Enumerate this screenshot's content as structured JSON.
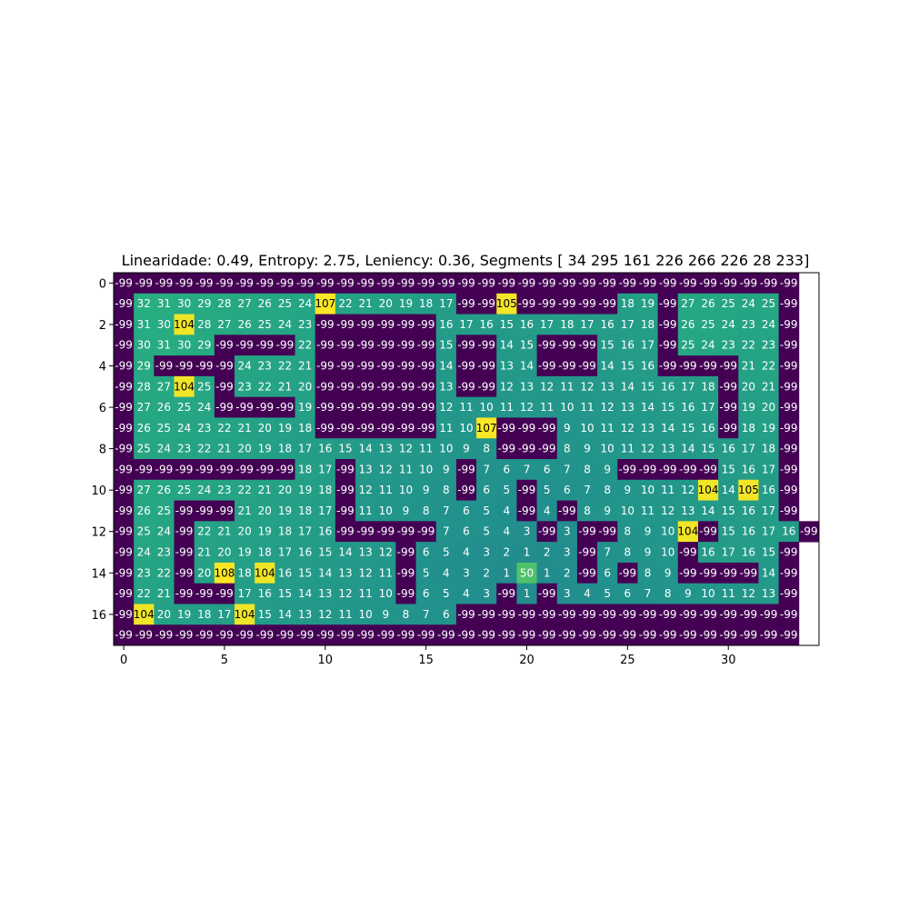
{
  "chart_data": {
    "type": "heatmap",
    "title": "Linearidade: 0.49, Entropy: 2.75, Leniency: 0.36, Segments [ 34 295 161 226 266 226  28 233]",
    "xlabel": "",
    "ylabel": "",
    "colormap": "viridis",
    "color_range": [
      -99,
      108
    ],
    "x_ticks": [
      0,
      5,
      10,
      15,
      20,
      25,
      30
    ],
    "y_ticks": [
      0,
      2,
      4,
      6,
      8,
      10,
      12,
      14,
      16
    ],
    "grid": false,
    "cell_text_colors": {
      "low": "#ffffff",
      "high": "#000000"
    },
    "cells": [
      [
        -99,
        -99,
        -99,
        -99,
        -99,
        -99,
        -99,
        -99,
        -99,
        -99,
        -99,
        -99,
        -99,
        -99,
        -99,
        -99,
        -99,
        -99,
        -99,
        -99,
        -99,
        -99,
        -99,
        -99,
        -99,
        -99,
        -99,
        -99,
        -99,
        -99,
        -99,
        -99,
        -99,
        -99
      ],
      [
        -99,
        32,
        31,
        30,
        29,
        28,
        27,
        26,
        25,
        24,
        107,
        22,
        21,
        20,
        19,
        18,
        17,
        -99,
        -99,
        105,
        -99,
        -99,
        -99,
        -99,
        -99,
        18,
        19,
        -99,
        27,
        26,
        25,
        24,
        25,
        -99
      ],
      [
        -99,
        31,
        30,
        104,
        28,
        27,
        26,
        25,
        24,
        23,
        -99,
        -99,
        -99,
        -99,
        -99,
        -99,
        16,
        17,
        16,
        15,
        16,
        17,
        18,
        17,
        16,
        17,
        18,
        -99,
        26,
        25,
        24,
        23,
        24,
        -99
      ],
      [
        -99,
        30,
        31,
        30,
        29,
        -99,
        -99,
        -99,
        -99,
        22,
        -99,
        -99,
        -99,
        -99,
        -99,
        -99,
        15,
        -99,
        -99,
        14,
        15,
        -99,
        -99,
        -99,
        15,
        16,
        17,
        -99,
        25,
        24,
        23,
        22,
        23,
        -99
      ],
      [
        -99,
        29,
        -99,
        -99,
        -99,
        -99,
        24,
        23,
        22,
        21,
        -99,
        -99,
        -99,
        -99,
        -99,
        -99,
        14,
        -99,
        -99,
        13,
        14,
        -99,
        -99,
        -99,
        14,
        15,
        16,
        -99,
        -99,
        -99,
        -99,
        21,
        22,
        -99
      ],
      [
        -99,
        28,
        27,
        104,
        25,
        -99,
        23,
        22,
        21,
        20,
        -99,
        -99,
        -99,
        -99,
        -99,
        -99,
        13,
        -99,
        -99,
        12,
        13,
        12,
        11,
        12,
        13,
        14,
        15,
        16,
        17,
        18,
        -99,
        20,
        21,
        -99
      ],
      [
        -99,
        27,
        26,
        25,
        24,
        -99,
        -99,
        -99,
        -99,
        19,
        -99,
        -99,
        -99,
        -99,
        -99,
        -99,
        12,
        11,
        10,
        11,
        12,
        11,
        10,
        11,
        12,
        13,
        14,
        15,
        16,
        17,
        -99,
        19,
        20,
        -99
      ],
      [
        -99,
        26,
        25,
        24,
        23,
        22,
        21,
        20,
        19,
        18,
        -99,
        -99,
        -99,
        -99,
        -99,
        -99,
        11,
        10,
        107,
        -99,
        -99,
        -99,
        9,
        10,
        11,
        12,
        13,
        14,
        15,
        16,
        -99,
        18,
        19,
        -99
      ],
      [
        -99,
        25,
        24,
        23,
        22,
        21,
        20,
        19,
        18,
        17,
        16,
        15,
        14,
        13,
        12,
        11,
        10,
        9,
        8,
        -99,
        -99,
        -99,
        8,
        9,
        10,
        11,
        12,
        13,
        14,
        15,
        16,
        17,
        18,
        -99
      ],
      [
        -99,
        -99,
        -99,
        -99,
        -99,
        -99,
        -99,
        -99,
        -99,
        18,
        17,
        -99,
        13,
        12,
        11,
        10,
        9,
        -99,
        7,
        6,
        7,
        6,
        7,
        8,
        9,
        -99,
        -99,
        -99,
        -99,
        -99,
        15,
        16,
        17,
        -99
      ],
      [
        -99,
        27,
        26,
        25,
        24,
        23,
        22,
        21,
        20,
        19,
        18,
        -99,
        12,
        11,
        10,
        9,
        8,
        -99,
        6,
        5,
        -99,
        5,
        6,
        7,
        8,
        9,
        10,
        11,
        12,
        104,
        14,
        105,
        16,
        -99
      ],
      [
        -99,
        26,
        25,
        -99,
        -99,
        -99,
        21,
        20,
        19,
        18,
        17,
        -99,
        11,
        10,
        9,
        8,
        7,
        6,
        5,
        4,
        -99,
        4,
        -99,
        8,
        9,
        10,
        11,
        12,
        13,
        14,
        15,
        16,
        17,
        -99
      ],
      [
        -99,
        25,
        24,
        -99,
        22,
        21,
        20,
        19,
        18,
        17,
        16,
        -99,
        -99,
        -99,
        -99,
        -99,
        7,
        6,
        5,
        4,
        3,
        -99,
        3,
        -99,
        -99,
        8,
        9,
        10,
        104,
        -99,
        15,
        16,
        17,
        16,
        -99
      ],
      [
        -99,
        24,
        23,
        -99,
        21,
        20,
        19,
        18,
        17,
        16,
        15,
        14,
        13,
        12,
        -99,
        6,
        5,
        4,
        3,
        2,
        1,
        2,
        3,
        -99,
        7,
        8,
        9,
        10,
        -99,
        16,
        17,
        16,
        15,
        -99
      ],
      [
        -99,
        23,
        22,
        -99,
        20,
        108,
        18,
        104,
        16,
        15,
        14,
        13,
        12,
        11,
        -99,
        5,
        4,
        3,
        2,
        1,
        50,
        1,
        2,
        -99,
        6,
        -99,
        8,
        9,
        -99,
        -99,
        -99,
        -99,
        14,
        -99
      ],
      [
        -99,
        22,
        21,
        -99,
        -99,
        -99,
        17,
        16,
        15,
        14,
        13,
        12,
        11,
        10,
        -99,
        6,
        5,
        4,
        3,
        -99,
        1,
        -99,
        3,
        4,
        5,
        6,
        7,
        8,
        9,
        10,
        11,
        12,
        13,
        -99
      ],
      [
        -99,
        104,
        20,
        19,
        18,
        17,
        104,
        15,
        14,
        13,
        12,
        11,
        10,
        9,
        8,
        7,
        6,
        -99,
        -99,
        -99,
        -99,
        -99,
        -99,
        -99,
        -99,
        -99,
        -99,
        -99,
        -99,
        -99,
        -99,
        -99,
        -99,
        -99
      ],
      [
        -99,
        -99,
        -99,
        -99,
        -99,
        -99,
        -99,
        -99,
        -99,
        -99,
        -99,
        -99,
        -99,
        -99,
        -99,
        -99,
        -99,
        -99,
        -99,
        -99,
        -99,
        -99,
        -99,
        -99,
        -99,
        -99,
        -99,
        -99,
        -99,
        -99,
        -99,
        -99,
        -99,
        -99
      ]
    ]
  }
}
